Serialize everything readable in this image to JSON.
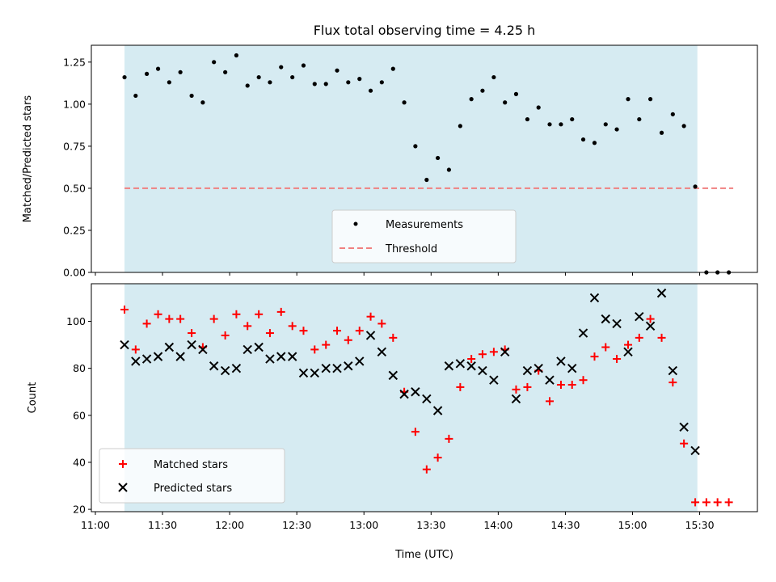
{
  "colors": {
    "shade": "#add8e6",
    "threshold": "#f08080",
    "measurement": "#000000",
    "matched": "#ff0000",
    "predicted": "#000000"
  },
  "chart_data": [
    {
      "type": "scatter",
      "title": "Flux total observing time = 4.25 h",
      "xlabel": "",
      "ylabel": "Matched/Predicted stars",
      "xlim": [
        10.97,
        15.93
      ],
      "ylim": [
        0.0,
        1.35
      ],
      "yticks": [
        0.0,
        0.25,
        0.5,
        0.75,
        1.0,
        1.25
      ],
      "ytick_labels": [
        "0.00",
        "0.25",
        "0.50",
        "0.75",
        "1.00",
        "1.25"
      ],
      "shaded_span": [
        11.217,
        15.483
      ],
      "threshold": {
        "value": 0.5,
        "x": [
          11.217,
          15.75
        ]
      },
      "legend": {
        "position": "lower-center",
        "entries": [
          "Measurements",
          "Threshold"
        ]
      },
      "series": [
        {
          "name": "Measurements",
          "marker": "dot",
          "x": [
            11.217,
            11.3,
            11.383,
            11.467,
            11.55,
            11.633,
            11.717,
            11.8,
            11.883,
            11.967,
            12.05,
            12.133,
            12.217,
            12.3,
            12.383,
            12.467,
            12.55,
            12.633,
            12.717,
            12.8,
            12.883,
            12.967,
            13.05,
            13.133,
            13.217,
            13.3,
            13.383,
            13.467,
            13.55,
            13.633,
            13.717,
            13.8,
            13.883,
            13.967,
            14.05,
            14.133,
            14.217,
            14.3,
            14.383,
            14.467,
            14.55,
            14.633,
            14.717,
            14.8,
            14.883,
            14.967,
            15.05,
            15.133,
            15.217,
            15.3,
            15.383,
            15.467,
            15.55,
            15.633,
            15.717
          ],
          "y": [
            1.16,
            1.05,
            1.18,
            1.21,
            1.13,
            1.19,
            1.05,
            1.01,
            1.25,
            1.19,
            1.29,
            1.11,
            1.16,
            1.13,
            1.22,
            1.16,
            1.23,
            1.12,
            1.12,
            1.2,
            1.13,
            1.15,
            1.08,
            1.13,
            1.21,
            1.01,
            0.75,
            0.55,
            0.68,
            0.61,
            0.87,
            1.03,
            1.08,
            1.16,
            1.01,
            1.06,
            0.91,
            0.98,
            0.88,
            0.88,
            0.91,
            0.79,
            0.77,
            0.88,
            0.85,
            1.03,
            0.91,
            1.03,
            0.83,
            0.94,
            0.87,
            0.51,
            0.0,
            0.0,
            0.0
          ]
        }
      ]
    },
    {
      "type": "scatter",
      "title": "",
      "xlabel": "Time (UTC)",
      "ylabel": "Count",
      "xlim": [
        10.97,
        15.93
      ],
      "ylim": [
        19,
        116
      ],
      "yticks": [
        20,
        40,
        60,
        80,
        100
      ],
      "ytick_labels": [
        "20",
        "40",
        "60",
        "80",
        "100"
      ],
      "xticks": [
        11.0,
        11.5,
        12.0,
        12.5,
        13.0,
        13.5,
        14.0,
        14.5,
        15.0,
        15.5
      ],
      "xtick_labels": [
        "11:00",
        "11:30",
        "12:00",
        "12:30",
        "13:00",
        "13:30",
        "14:00",
        "14:30",
        "15:00",
        "15:30"
      ],
      "shaded_span": [
        11.217,
        15.483
      ],
      "legend": {
        "position": "lower-left",
        "entries": [
          "Matched stars",
          "Predicted stars"
        ]
      },
      "series": [
        {
          "name": "Matched stars",
          "marker": "plus",
          "x": [
            11.217,
            11.3,
            11.383,
            11.467,
            11.55,
            11.633,
            11.717,
            11.8,
            11.883,
            11.967,
            12.05,
            12.133,
            12.217,
            12.3,
            12.383,
            12.467,
            12.55,
            12.633,
            12.717,
            12.8,
            12.883,
            12.967,
            13.05,
            13.133,
            13.217,
            13.3,
            13.383,
            13.467,
            13.55,
            13.633,
            13.717,
            13.8,
            13.883,
            13.967,
            14.05,
            14.133,
            14.217,
            14.3,
            14.383,
            14.467,
            14.55,
            14.633,
            14.717,
            14.8,
            14.883,
            14.967,
            15.05,
            15.133,
            15.217,
            15.3,
            15.383,
            15.467,
            15.55,
            15.633,
            15.717
          ],
          "y": [
            105,
            88,
            99,
            103,
            101,
            101,
            95,
            89,
            101,
            94,
            103,
            98,
            103,
            95,
            104,
            98,
            96,
            88,
            90,
            96,
            92,
            96,
            102,
            99,
            93,
            70,
            53,
            37,
            42,
            50,
            72,
            84,
            86,
            87,
            88,
            71,
            72,
            79,
            66,
            73,
            73,
            75,
            85,
            89,
            84,
            90,
            93,
            101,
            93,
            74,
            48,
            23,
            23,
            23,
            23
          ]
        },
        {
          "name": "Predicted stars",
          "marker": "x",
          "x": [
            11.217,
            11.3,
            11.383,
            11.467,
            11.55,
            11.633,
            11.717,
            11.8,
            11.883,
            11.967,
            12.05,
            12.133,
            12.217,
            12.3,
            12.383,
            12.467,
            12.55,
            12.633,
            12.717,
            12.8,
            12.883,
            12.967,
            13.05,
            13.133,
            13.217,
            13.3,
            13.383,
            13.467,
            13.55,
            13.633,
            13.717,
            13.8,
            13.883,
            13.967,
            14.05,
            14.133,
            14.217,
            14.3,
            14.383,
            14.467,
            14.55,
            14.633,
            14.717,
            14.8,
            14.883,
            14.967,
            15.05,
            15.133,
            15.217,
            15.3,
            15.383,
            15.467
          ],
          "y": [
            90,
            83,
            84,
            85,
            89,
            85,
            90,
            88,
            81,
            79,
            80,
            88,
            89,
            84,
            85,
            85,
            78,
            78,
            80,
            80,
            81,
            83,
            94,
            87,
            77,
            69,
            70,
            67,
            62,
            81,
            82,
            81,
            79,
            75,
            87,
            67,
            79,
            80,
            75,
            83,
            80,
            95,
            110,
            101,
            99,
            87,
            102,
            98,
            112,
            79,
            55,
            45
          ]
        }
      ]
    }
  ]
}
